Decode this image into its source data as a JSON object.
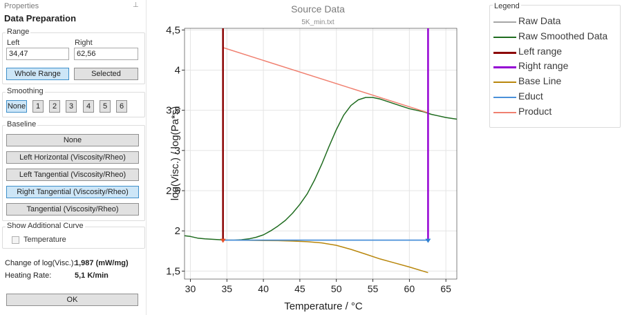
{
  "panel": {
    "caption": "Properties",
    "title": "Data Preparation",
    "range": {
      "group_label": "Range",
      "left_label": "Left",
      "right_label": "Right",
      "left_value": "34,47",
      "right_value": "62,56",
      "whole_range_button": "Whole Range",
      "selected_button": "Selected"
    },
    "smoothing": {
      "group_label": "Smoothing",
      "options": [
        "None",
        "1",
        "2",
        "3",
        "4",
        "5",
        "6"
      ],
      "selected": "None"
    },
    "baseline": {
      "group_label": "Baseline",
      "options": [
        "None",
        "Left Horizontal (Viscosity/Rheo)",
        "Left Tangential (Viscosity/Rheo)",
        "Right Tangential (Viscosity/Rheo)",
        "Tangential (Viscosity/Rheo)"
      ],
      "selected": "Right Tangential (Viscosity/Rheo)"
    },
    "additional_curve": {
      "group_label": "Show Additional Curve",
      "temperature_label": "Temperature",
      "temperature_checked": false
    },
    "results": {
      "change_label": "Change of log(Visc.):",
      "change_value": "1,987 (mW/mg)",
      "heating_label": "Heating Rate:",
      "heating_value": "5,1 K/min"
    },
    "ok_button": "OK"
  },
  "chart_data": {
    "type": "line",
    "title": "Source Data",
    "subtitle": "5K_min.txt",
    "xlabel": "Temperature / °C",
    "ylabel": "log(Visc.) / log(Pa*s)",
    "xlim": [
      29.2,
      66.5
    ],
    "ylim": [
      1.4,
      4.52
    ],
    "x_ticks": [
      30,
      35,
      40,
      45,
      50,
      55,
      60,
      65
    ],
    "y_ticks": [
      1.5,
      2,
      2.5,
      3,
      3.5,
      4,
      4.5
    ],
    "x_tick_labels": [
      "30",
      "35",
      "40",
      "45",
      "50",
      "55",
      "60",
      "65"
    ],
    "y_tick_labels": [
      "1,5",
      "2",
      "2,5",
      "3",
      "3,5",
      "4",
      "4,5"
    ],
    "grid": true,
    "legend_placement": "outside-right",
    "legend_caption": "Legend",
    "series": [
      {
        "name": "Raw Data",
        "color": "#a5a5a5",
        "x": [],
        "y": []
      },
      {
        "name": "Raw Smoothed Data",
        "color": "#1e6b1e",
        "x": [
          29.2,
          30,
          31,
          32,
          33,
          34,
          35,
          36,
          37,
          38,
          39,
          40,
          41,
          42,
          43,
          44,
          45,
          46,
          47,
          48,
          49,
          50,
          51,
          52,
          53,
          54,
          55,
          56,
          57,
          58,
          59,
          60,
          61,
          62,
          63,
          64,
          65,
          66.5
        ],
        "y": [
          1.94,
          1.93,
          1.91,
          1.9,
          1.895,
          1.89,
          1.885,
          1.885,
          1.89,
          1.9,
          1.92,
          1.95,
          2.0,
          2.06,
          2.13,
          2.22,
          2.33,
          2.46,
          2.63,
          2.83,
          3.05,
          3.26,
          3.44,
          3.56,
          3.63,
          3.66,
          3.66,
          3.64,
          3.61,
          3.58,
          3.55,
          3.52,
          3.5,
          3.48,
          3.45,
          3.43,
          3.41,
          3.39
        ]
      },
      {
        "name": "Left range",
        "color": "#8b0000",
        "vertical_x": 34.47
      },
      {
        "name": "Right range",
        "color": "#9400d3",
        "vertical_x": 62.56
      },
      {
        "name": "Base Line",
        "color": "#b8860b",
        "x": [
          34.47,
          36,
          38,
          40,
          42,
          44,
          46,
          48,
          50,
          52,
          54,
          56,
          58,
          60,
          62.56
        ],
        "y": [
          1.885,
          1.884,
          1.882,
          1.88,
          1.878,
          1.873,
          1.865,
          1.85,
          1.82,
          1.77,
          1.71,
          1.65,
          1.6,
          1.55,
          1.48
        ]
      },
      {
        "name": "Educt",
        "color": "#4a90d9",
        "x": [
          34.47,
          62.56
        ],
        "y": [
          1.885,
          1.885
        ]
      },
      {
        "name": "Product",
        "color": "#f08070",
        "x": [
          34.47,
          62.56
        ],
        "y": [
          4.28,
          3.47
        ]
      }
    ],
    "markers": [
      {
        "x": 34.47,
        "y": 1.885,
        "color": "#e8502a"
      },
      {
        "x": 62.56,
        "y": 1.885,
        "color": "#2f7fd0"
      }
    ]
  }
}
